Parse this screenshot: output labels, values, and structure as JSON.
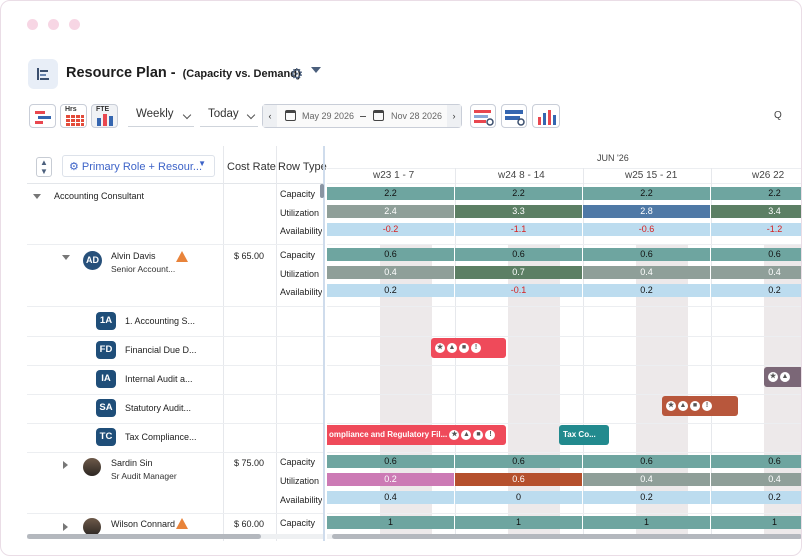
{
  "header": {
    "title": "Resource Plan -",
    "subtitle": "(Capacity vs. Demand)"
  },
  "toolbar": {
    "hrs_label": "Hrs",
    "fte_label": "FTE",
    "view_select": "Weekly",
    "today_select": "Today",
    "start_date": "May 29 2026",
    "end_date": "Nov 28 2026",
    "prev": "‹",
    "next": "›",
    "search_hint": "Q"
  },
  "columns": {
    "group_by": "Primary Role + Resour...",
    "cost_rate": "Cost Rate",
    "row_type": "Row Type"
  },
  "timeline": {
    "month": "JUN '26",
    "weeks": [
      "w23  1 - 7",
      "w24  8 - 14",
      "w25  15 - 21",
      "w26  22"
    ]
  },
  "rows": {
    "role": {
      "name": "Accounting Consultant",
      "types": [
        "Capacity",
        "Utilization",
        "Availability"
      ],
      "capacity": [
        "2.2",
        "2.2",
        "2.2",
        "2.2"
      ],
      "utilization": [
        "2.4",
        "3.3",
        "2.8",
        "3.4"
      ],
      "availability": [
        "-0.2",
        "-1.1",
        "-0.6",
        "-1.2"
      ]
    },
    "alvin": {
      "initials": "AD",
      "name": "Alvin Davis",
      "title": "Senior Account...",
      "rate": "$ 65.00",
      "types": [
        "Capacity",
        "Utilization",
        "Availability"
      ],
      "capacity": [
        "0.6",
        "0.6",
        "0.6",
        "0.6"
      ],
      "utilization": [
        "0.4",
        "0.7",
        "0.4",
        "0.4"
      ],
      "availability": [
        "0.2",
        "-0.1",
        "0.2",
        "0.2"
      ]
    },
    "projects": [
      {
        "code": "1A",
        "name": "1. Accounting S..."
      },
      {
        "code": "FD",
        "name": "Financial Due D..."
      },
      {
        "code": "IA",
        "name": "Internal Audit a..."
      },
      {
        "code": "SA",
        "name": "Statutory Audit..."
      },
      {
        "code": "TC",
        "name": "Tax Compliance..."
      }
    ],
    "sardin": {
      "name": "Sardin Sin",
      "title": "Sr Audit Manager",
      "rate": "$ 75.00",
      "types": [
        "Capacity",
        "Utilization",
        "Availability"
      ],
      "capacity": [
        "0.6",
        "0.6",
        "0.6",
        "0.6"
      ],
      "utilization": [
        "0.2",
        "0.6",
        "0.4",
        "0.4"
      ],
      "availability": [
        "0.4",
        "0",
        "0.2",
        "0.2"
      ]
    },
    "wilson": {
      "name": "Wilson Connard",
      "rate": "$ 60.00",
      "types": [
        "Capacity"
      ],
      "capacity": [
        "1",
        "1",
        "1",
        "1"
      ]
    }
  },
  "tasks": {
    "tax_bar": "ompliance and Regulatory Fil...",
    "tax_short": "Tax Co..."
  },
  "colors": {
    "capacity": "#6ea5a0",
    "util_gray": "#8f9f99",
    "util_green": "#5c7f64",
    "util_blue": "#4f79a6",
    "util_pink": "#cc7ab5",
    "util_rust": "#b5502d",
    "avail": "#bcdcef",
    "task_red": "#ef4a5a",
    "task_brown": "#b8573c",
    "task_teal": "#228a8e",
    "task_purple": "#7b6777"
  }
}
